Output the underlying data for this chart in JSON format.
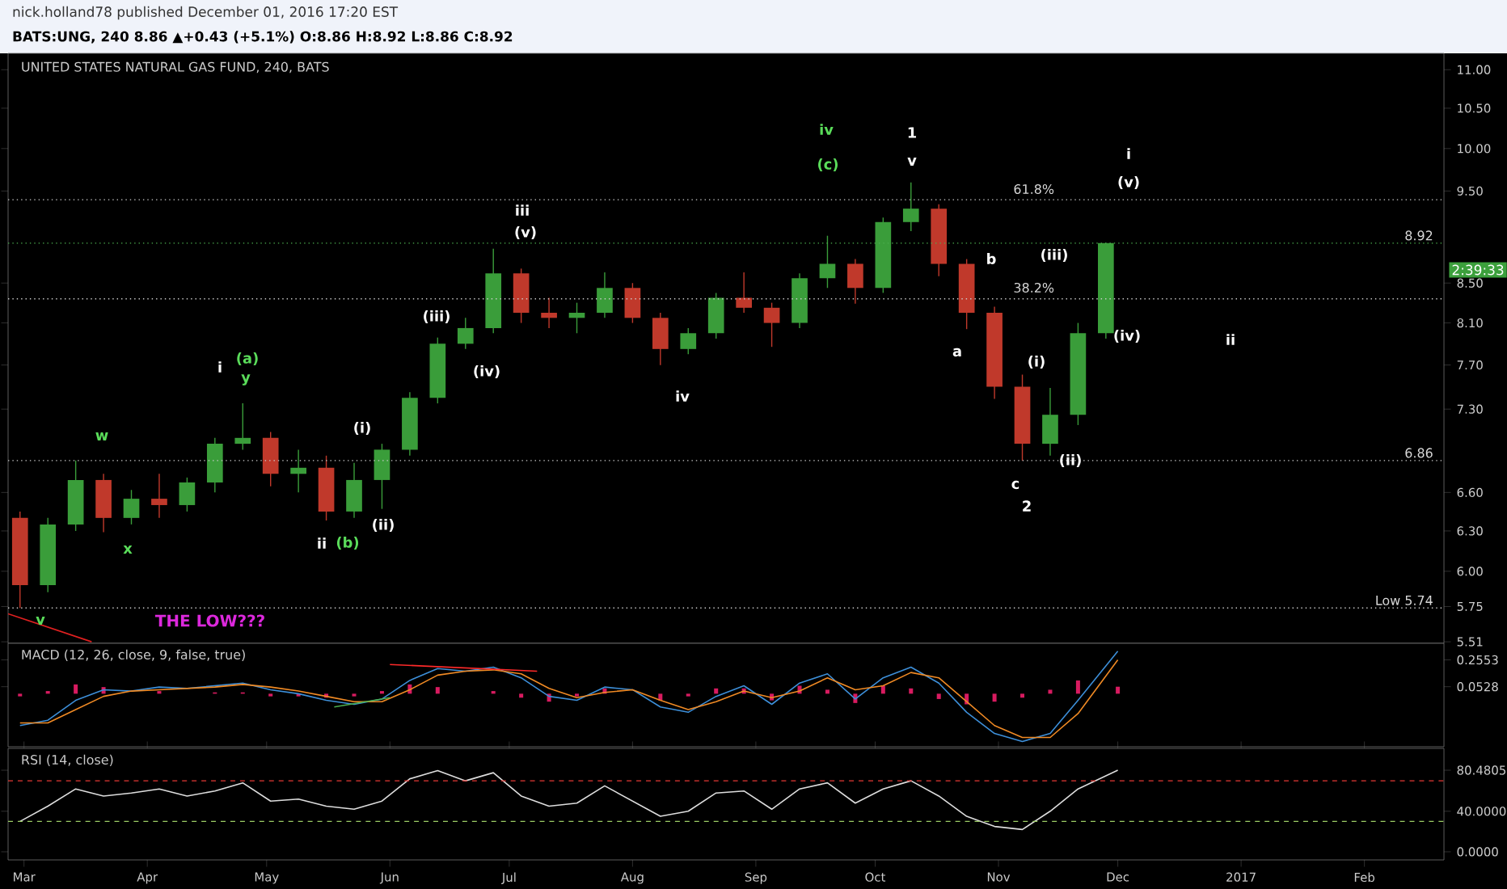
{
  "chart_data": [
    {
      "type": "candlestick",
      "title": "UNITED STATES NATURAL GAS FUND, 240, BATS",
      "subtitle": "BATS:UNG, 240 8.86 ▲+0.43 (+5.1%) O:8.86 H:8.92 L:8.86 C:8.92",
      "x": [
        "2016-02-29",
        "2016-03-07",
        "2016-03-14",
        "2016-03-21",
        "2016-03-28",
        "2016-04-04",
        "2016-04-11",
        "2016-04-18",
        "2016-04-25",
        "2016-05-02",
        "2016-05-09",
        "2016-05-16",
        "2016-05-23",
        "2016-05-30",
        "2016-06-06",
        "2016-06-13",
        "2016-06-20",
        "2016-06-27",
        "2016-07-04",
        "2016-07-11",
        "2016-07-18",
        "2016-07-25",
        "2016-08-01",
        "2016-08-08",
        "2016-08-15",
        "2016-08-22",
        "2016-08-29",
        "2016-09-05",
        "2016-09-12",
        "2016-09-19",
        "2016-09-26",
        "2016-10-03",
        "2016-10-10",
        "2016-10-17",
        "2016-10-24",
        "2016-10-31",
        "2016-11-07",
        "2016-11-14",
        "2016-11-21",
        "2016-11-28"
      ],
      "ohlc": [
        [
          6.4,
          6.45,
          5.74,
          5.9
        ],
        [
          5.9,
          6.4,
          5.85,
          6.35
        ],
        [
          6.35,
          6.86,
          6.3,
          6.7
        ],
        [
          6.7,
          6.75,
          6.29,
          6.4
        ],
        [
          6.4,
          6.62,
          6.35,
          6.55
        ],
        [
          6.55,
          6.75,
          6.4,
          6.5
        ],
        [
          6.5,
          6.72,
          6.45,
          6.68
        ],
        [
          6.68,
          7.05,
          6.6,
          7.0
        ],
        [
          7.0,
          7.35,
          6.95,
          7.05
        ],
        [
          7.05,
          7.1,
          6.65,
          6.75
        ],
        [
          6.75,
          6.95,
          6.6,
          6.8
        ],
        [
          6.8,
          6.9,
          6.38,
          6.45
        ],
        [
          6.45,
          6.84,
          6.4,
          6.7
        ],
        [
          6.7,
          7.0,
          6.47,
          6.95
        ],
        [
          6.95,
          7.45,
          6.9,
          7.4
        ],
        [
          7.4,
          7.96,
          7.35,
          7.9
        ],
        [
          7.9,
          8.15,
          7.85,
          8.05
        ],
        [
          8.05,
          8.86,
          8.0,
          8.6
        ],
        [
          8.6,
          8.65,
          8.1,
          8.2
        ],
        [
          8.2,
          8.35,
          8.05,
          8.15
        ],
        [
          8.15,
          8.3,
          8.0,
          8.2
        ],
        [
          8.2,
          8.61,
          8.15,
          8.45
        ],
        [
          8.45,
          8.5,
          8.1,
          8.15
        ],
        [
          8.15,
          8.2,
          7.7,
          7.85
        ],
        [
          7.85,
          8.05,
          7.8,
          8.0
        ],
        [
          8.0,
          8.4,
          7.95,
          8.35
        ],
        [
          8.35,
          8.61,
          8.2,
          8.25
        ],
        [
          8.25,
          8.3,
          7.87,
          8.1
        ],
        [
          8.1,
          8.6,
          8.05,
          8.55
        ],
        [
          8.55,
          9.0,
          8.45,
          8.7
        ],
        [
          8.7,
          8.75,
          8.29,
          8.45
        ],
        [
          8.45,
          9.2,
          8.4,
          9.15
        ],
        [
          9.15,
          9.6,
          9.05,
          9.3
        ],
        [
          9.3,
          9.35,
          8.57,
          8.7
        ],
        [
          8.7,
          8.75,
          8.04,
          8.2
        ],
        [
          8.2,
          8.26,
          7.39,
          7.5
        ],
        [
          7.5,
          7.61,
          6.86,
          7.0
        ],
        [
          7.0,
          7.49,
          6.9,
          7.25
        ],
        [
          7.25,
          8.1,
          7.16,
          8.0
        ],
        [
          8.0,
          8.92,
          7.95,
          8.92
        ]
      ],
      "colors": [
        "#c0392b",
        "#3a9d3a",
        "#3a9d3a",
        "#c0392b",
        "#3a9d3a",
        "#c0392b",
        "#3a9d3a",
        "#3a9d3a",
        "#3a9d3a",
        "#c0392b",
        "#3a9d3a",
        "#c0392b",
        "#3a9d3a",
        "#3a9d3a",
        "#3a9d3a",
        "#3a9d3a",
        "#3a9d3a",
        "#3a9d3a",
        "#c0392b",
        "#c0392b",
        "#3a9d3a",
        "#3a9d3a",
        "#c0392b",
        "#c0392b",
        "#3a9d3a",
        "#3a9d3a",
        "#c0392b",
        "#c0392b",
        "#3a9d3a",
        "#3a9d3a",
        "#c0392b",
        "#3a9d3a",
        "#3a9d3a",
        "#c0392b",
        "#c0392b",
        "#c0392b",
        "#c0392b",
        "#3a9d3a",
        "#3a9d3a",
        "#3a9d3a"
      ],
      "series": [
        {
          "type": "line",
          "color": "#e02020",
          "x": [
            "2016-02-26",
            "2016-03-18"
          ],
          "values": [
            5.7,
            5.51
          ]
        }
      ],
      "log": "y",
      "xlim": [
        "2016-02-26",
        "2017-02-21"
      ],
      "ylim": [
        5.5,
        11.22
      ],
      "yticks": [
        {
          "value": 11,
          "label": "11.00"
        },
        {
          "value": 10.5,
          "label": "10.50"
        },
        {
          "value": 10,
          "label": "10.00"
        },
        {
          "value": 9.5,
          "label": "9.50"
        },
        {
          "value": 8.5,
          "label": "8.50"
        },
        {
          "value": 8.1,
          "label": "8.10"
        },
        {
          "value": 7.7,
          "label": "7.70"
        },
        {
          "value": 7.3,
          "label": "7.30"
        },
        {
          "value": 6.6,
          "label": "6.60"
        },
        {
          "value": 6.3,
          "label": "6.30"
        },
        {
          "value": 6,
          "label": "6.00"
        },
        {
          "value": 5.75,
          "label": "5.75"
        },
        {
          "value": 5.51,
          "label": "5.51"
        }
      ],
      "tick_labels": "y",
      "ref_lines": [
        {
          "axis": "y",
          "value": 9.4,
          "color": "#cccccc",
          "line_style": "dotted"
        },
        {
          "axis": "y",
          "value": 8.92,
          "label": "8.92",
          "color": "#4caf50",
          "line_style": "dotted"
        },
        {
          "axis": "y",
          "value": 8.34,
          "color": "#cccccc",
          "line_style": "dotted"
        },
        {
          "axis": "y",
          "value": 6.86,
          "label": "6.86",
          "color": "#cccccc",
          "line_style": "dotted"
        },
        {
          "axis": "y",
          "value": 5.74,
          "label": "Low 5.74",
          "color": "#cccccc",
          "line_style": "dotted"
        }
      ],
      "annotations": [
        "nick.holland78 published December 01, 2016 17:20 EST",
        "2:39:33",
        "w",
        "x",
        "v",
        "THE LOW???",
        "i",
        "(a)",
        "y",
        "ii",
        "(b)",
        "(i)",
        "(ii)",
        "(iii)",
        "(iv)",
        "iii",
        "(v)",
        "iv",
        "iv",
        "(c)",
        "1",
        "v",
        "b",
        "a",
        "c",
        "2",
        "(i)",
        "(ii)",
        "(iii)",
        "(iv)",
        "i",
        "(v)",
        "ii",
        "61.8%",
        "38.2%"
      ]
    },
    {
      "type": "line",
      "title": "MACD (12, 26, close, 9, false, true)",
      "x": [
        "2016-02-29",
        "2016-03-07",
        "2016-03-14",
        "2016-03-21",
        "2016-03-28",
        "2016-04-04",
        "2016-04-11",
        "2016-04-18",
        "2016-04-25",
        "2016-05-02",
        "2016-05-09",
        "2016-05-16",
        "2016-05-23",
        "2016-05-30",
        "2016-06-06",
        "2016-06-13",
        "2016-06-20",
        "2016-06-27",
        "2016-07-04",
        "2016-07-11",
        "2016-07-18",
        "2016-07-25",
        "2016-08-01",
        "2016-08-08",
        "2016-08-15",
        "2016-08-22",
        "2016-08-29",
        "2016-09-05",
        "2016-09-12",
        "2016-09-19",
        "2016-09-26",
        "2016-10-03",
        "2016-10-10",
        "2016-10-17",
        "2016-10-24",
        "2016-10-31",
        "2016-11-07",
        "2016-11-14",
        "2016-11-21",
        "2016-12-01"
      ],
      "series": [
        {
          "type": "bar",
          "color": "#d81b60",
          "values": [
            -0.02,
            0.02,
            0.07,
            0.05,
            0.0,
            0.02,
            0.0,
            0.01,
            0.01,
            -0.02,
            -0.02,
            -0.03,
            -0.02,
            0.02,
            0.07,
            0.05,
            0.0,
            0.02,
            -0.03,
            -0.06,
            -0.02,
            0.04,
            0.0,
            -0.05,
            -0.02,
            0.04,
            0.04,
            -0.05,
            0.06,
            0.03,
            -0.07,
            0.06,
            0.04,
            -0.04,
            -0.08,
            -0.06,
            -0.03,
            0.03,
            0.1,
            0.0528
          ]
        },
        {
          "type": "line",
          "color": "#3d8fd9",
          "values": [
            -0.24,
            -0.2,
            -0.05,
            0.03,
            0.02,
            0.05,
            0.04,
            0.06,
            0.08,
            0.03,
            0.0,
            -0.05,
            -0.08,
            -0.04,
            0.1,
            0.19,
            0.17,
            0.2,
            0.12,
            -0.02,
            -0.05,
            0.05,
            0.03,
            -0.1,
            -0.14,
            -0.02,
            0.06,
            -0.08,
            0.08,
            0.15,
            -0.04,
            0.12,
            0.2,
            0.08,
            -0.14,
            -0.3,
            -0.36,
            -0.3,
            -0.05,
            0.32
          ]
        },
        {
          "type": "line",
          "color": "#f08a24",
          "values": [
            -0.22,
            -0.22,
            -0.12,
            -0.02,
            0.02,
            0.03,
            0.04,
            0.05,
            0.07,
            0.05,
            0.02,
            -0.02,
            -0.06,
            -0.06,
            0.03,
            0.14,
            0.17,
            0.18,
            0.15,
            0.04,
            -0.03,
            0.01,
            0.03,
            -0.05,
            -0.12,
            -0.06,
            0.02,
            -0.03,
            0.02,
            0.12,
            0.03,
            0.06,
            0.16,
            0.12,
            -0.06,
            -0.24,
            -0.33,
            -0.33,
            -0.15,
            0.2553
          ]
        },
        {
          "type": "line",
          "color": "#4caf50",
          "x": [
            "2016-05-18",
            "2016-06-01"
          ],
          "values": [
            -0.1,
            -0.03
          ]
        },
        {
          "type": "line",
          "color": "#ff2a2a",
          "x": [
            "2016-06-01",
            "2016-07-08"
          ],
          "values": [
            0.22,
            0.17
          ]
        }
      ],
      "xlim": [
        "2016-02-26",
        "2017-02-21"
      ],
      "ylim": [
        -0.4,
        0.38
      ],
      "yticks": [
        0.2553,
        0.0528
      ],
      "tick_labels": "y"
    },
    {
      "type": "line",
      "title": "RSI (14, close)",
      "color": "#dddddd",
      "x": [
        "2016-02-29",
        "2016-03-07",
        "2016-03-14",
        "2016-03-21",
        "2016-03-28",
        "2016-04-04",
        "2016-04-11",
        "2016-04-18",
        "2016-04-25",
        "2016-05-02",
        "2016-05-09",
        "2016-05-16",
        "2016-05-23",
        "2016-05-30",
        "2016-06-06",
        "2016-06-13",
        "2016-06-20",
        "2016-06-27",
        "2016-07-04",
        "2016-07-11",
        "2016-07-18",
        "2016-07-25",
        "2016-08-01",
        "2016-08-08",
        "2016-08-15",
        "2016-08-22",
        "2016-08-29",
        "2016-09-05",
        "2016-09-12",
        "2016-09-19",
        "2016-09-26",
        "2016-10-03",
        "2016-10-10",
        "2016-10-17",
        "2016-10-24",
        "2016-10-31",
        "2016-11-07",
        "2016-11-14",
        "2016-11-21",
        "2016-12-01"
      ],
      "values": [
        30,
        45,
        62,
        55,
        58,
        62,
        55,
        60,
        68,
        50,
        52,
        45,
        42,
        50,
        72,
        80,
        70,
        78,
        55,
        45,
        48,
        65,
        50,
        35,
        40,
        58,
        60,
        42,
        62,
        68,
        48,
        62,
        70,
        55,
        35,
        25,
        22,
        40,
        62,
        80.4805
      ],
      "xlim": [
        "2016-02-26",
        "2017-02-21"
      ],
      "ylim": [
        -8,
        102
      ],
      "xticks": [
        {
          "value": "2016-03-01",
          "label": "Mar"
        },
        {
          "value": "2016-04-01",
          "label": "Apr"
        },
        {
          "value": "2016-05-01",
          "label": "May"
        },
        {
          "value": "2016-06-01",
          "label": "Jun"
        },
        {
          "value": "2016-07-01",
          "label": "Jul"
        },
        {
          "value": "2016-08-01",
          "label": "Aug"
        },
        {
          "value": "2016-09-01",
          "label": "Sep"
        },
        {
          "value": "2016-10-01",
          "label": "Oct"
        },
        {
          "value": "2016-11-01",
          "label": "Nov"
        },
        {
          "value": "2016-12-01",
          "label": "Dec"
        },
        {
          "value": "2017-01-01",
          "label": "2017"
        },
        {
          "value": "2017-02-01",
          "label": "Feb"
        }
      ],
      "yticks": [
        {
          "value": 0,
          "label": "0.0000"
        },
        {
          "value": 40,
          "label": "40.0000"
        },
        {
          "value": 80.4805,
          "label": "80.4805"
        }
      ],
      "ref_lines": [
        {
          "axis": "y",
          "value": 70,
          "color": "#e53935",
          "line_style": "dashed"
        },
        {
          "axis": "y",
          "value": 30,
          "color": "#9ccc65",
          "line_style": "dashed"
        }
      ]
    }
  ]
}
